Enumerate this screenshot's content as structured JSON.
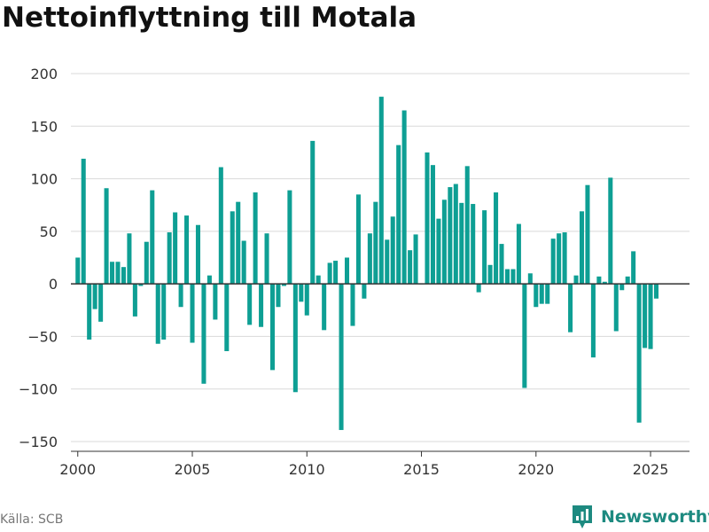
{
  "title": "Nettoinflyttning till Motala",
  "source": "Källa: SCB",
  "brand": {
    "name": "Newsworthy",
    "icon": "newsworthy-logo-icon"
  },
  "colors": {
    "bar": "#0e9f94",
    "grid": "#d9d9d9",
    "zero_line": "#333333",
    "axis_text": "#333333"
  },
  "chart_data": {
    "type": "bar",
    "title": "Nettoinflyttning till Motala",
    "xlabel": "",
    "ylabel": "",
    "ylim": [
      -150,
      200
    ],
    "xlim": [
      1999.7,
      2026.7
    ],
    "yticks": [
      200,
      150,
      100,
      50,
      0,
      -50,
      -100,
      -150
    ],
    "ytick_labels": [
      "200",
      "150",
      "100",
      "50",
      "0",
      "−50",
      "−100",
      "−150"
    ],
    "xticks": [
      2000,
      2005,
      2010,
      2015,
      2020,
      2025
    ],
    "xtick_labels": [
      "2000",
      "2005",
      "2010",
      "2015",
      "2020",
      "2025"
    ],
    "grid": true,
    "legend": "none",
    "x": [
      2000.0,
      2000.25,
      2000.5,
      2000.75,
      2001.0,
      2001.25,
      2001.5,
      2001.75,
      2002.0,
      2002.25,
      2002.5,
      2002.75,
      2003.0,
      2003.25,
      2003.5,
      2003.75,
      2004.0,
      2004.25,
      2004.5,
      2004.75,
      2005.0,
      2005.25,
      2005.5,
      2005.75,
      2006.0,
      2006.25,
      2006.5,
      2006.75,
      2007.0,
      2007.25,
      2007.5,
      2007.75,
      2008.0,
      2008.25,
      2008.5,
      2008.75,
      2009.0,
      2009.25,
      2009.5,
      2009.75,
      2010.0,
      2010.25,
      2010.5,
      2010.75,
      2011.0,
      2011.25,
      2011.5,
      2011.75,
      2012.0,
      2012.25,
      2012.5,
      2012.75,
      2013.0,
      2013.25,
      2013.5,
      2013.75,
      2014.0,
      2014.25,
      2014.5,
      2014.75,
      2015.0,
      2015.25,
      2015.5,
      2015.75,
      2016.0,
      2016.25,
      2016.5,
      2016.75,
      2017.0,
      2017.25,
      2017.5,
      2017.75,
      2018.0,
      2018.25,
      2018.5,
      2018.75,
      2019.0,
      2019.25,
      2019.5,
      2019.75,
      2020.0,
      2020.25,
      2020.5,
      2020.75,
      2021.0,
      2021.25,
      2021.5,
      2021.75,
      2022.0,
      2022.25,
      2022.5,
      2022.75,
      2023.0,
      2023.25,
      2023.5,
      2023.75,
      2024.0,
      2024.25,
      2024.5,
      2024.75,
      2025.0,
      2025.25
    ],
    "values": [
      25,
      119,
      -53,
      -24,
      -36,
      91,
      21,
      21,
      16,
      48,
      -31,
      -2,
      40,
      89,
      -57,
      -53,
      49,
      68,
      -22,
      65,
      -56,
      56,
      -95,
      8,
      -34,
      111,
      -64,
      69,
      78,
      41,
      -39,
      87,
      -41,
      48,
      -82,
      -22,
      -2,
      89,
      -103,
      -17,
      -30,
      136,
      8,
      -44,
      20,
      22,
      -139,
      25,
      -40,
      85,
      -14,
      48,
      78,
      178,
      42,
      64,
      132,
      165,
      32,
      47,
      0,
      125,
      113,
      62,
      80,
      92,
      95,
      77,
      112,
      76,
      -8,
      70,
      18,
      87,
      38,
      14,
      14,
      57,
      -99,
      10,
      -22,
      -19,
      -19,
      43,
      48,
      49,
      -46,
      8,
      69,
      94,
      -70,
      7,
      2,
      101,
      -45,
      -6,
      7,
      31,
      -132,
      -61,
      -62,
      -14
    ]
  }
}
